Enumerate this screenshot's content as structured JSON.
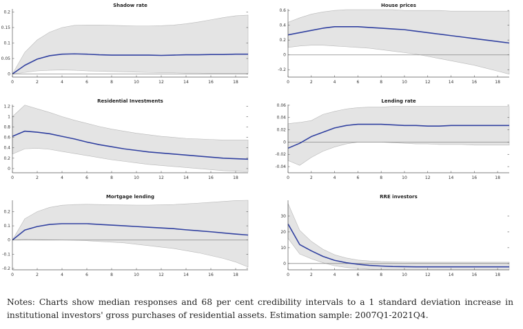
{
  "chart_data": [
    {
      "type": "line",
      "title": "Shadow rate",
      "x": [
        0,
        1,
        2,
        3,
        4,
        5,
        6,
        7,
        8,
        9,
        10,
        11,
        12,
        13,
        14,
        15,
        16,
        17,
        18,
        19
      ],
      "xticks": [
        0,
        2,
        4,
        6,
        8,
        10,
        12,
        14,
        16,
        18
      ],
      "xlim": [
        0,
        19
      ],
      "ylim": [
        -0.01,
        0.21
      ],
      "yticks": [
        0,
        0.05,
        0.1,
        0.15,
        0.2
      ],
      "ytick_labels": [
        "0",
        "0.05",
        "0.1",
        "0.15",
        "0.2"
      ],
      "zero_line": true,
      "series": [
        {
          "values": [
            0,
            0.028,
            0.048,
            0.059,
            0.064,
            0.065,
            0.064,
            0.062,
            0.061,
            0.061,
            0.061,
            0.061,
            0.06,
            0.061,
            0.062,
            0.062,
            0.063,
            0.063,
            0.064,
            0.064
          ]
        }
      ],
      "band": {
        "lower": [
          0,
          0.005,
          0.01,
          0.012,
          0.013,
          0.012,
          0.01,
          0.009,
          0.008,
          0.007,
          0.006,
          0.005,
          0.004,
          0.004,
          0.003,
          0.003,
          0.002,
          0.002,
          0.002,
          0.002
        ],
        "upper": [
          0,
          0.07,
          0.11,
          0.135,
          0.15,
          0.157,
          0.158,
          0.158,
          0.157,
          0.156,
          0.155,
          0.155,
          0.156,
          0.158,
          0.162,
          0.168,
          0.175,
          0.182,
          0.188,
          0.19
        ]
      }
    },
    {
      "type": "line",
      "title": "House prices",
      "x": [
        0,
        1,
        2,
        3,
        4,
        5,
        6,
        7,
        8,
        9,
        10,
        11,
        12,
        13,
        14,
        15,
        16,
        17,
        18,
        19
      ],
      "xticks": [
        0,
        2,
        4,
        6,
        8,
        10,
        12,
        14,
        16,
        18
      ],
      "xlim": [
        0,
        19
      ],
      "ylim": [
        -0.3,
        0.62
      ],
      "yticks": [
        -0.2,
        0,
        0.2,
        0.4,
        0.6
      ],
      "ytick_labels": [
        "-0.2",
        "0",
        "0.2",
        "0.4",
        "0.6"
      ],
      "zero_line": true,
      "series": [
        {
          "values": [
            0.27,
            0.3,
            0.33,
            0.36,
            0.38,
            0.38,
            0.38,
            0.37,
            0.36,
            0.35,
            0.34,
            0.32,
            0.3,
            0.28,
            0.26,
            0.24,
            0.22,
            0.2,
            0.18,
            0.16
          ]
        }
      ],
      "band": {
        "lower": [
          0.1,
          0.12,
          0.13,
          0.13,
          0.12,
          0.11,
          0.1,
          0.09,
          0.07,
          0.05,
          0.03,
          0.01,
          -0.02,
          -0.05,
          -0.08,
          -0.11,
          -0.14,
          -0.18,
          -0.22,
          -0.26
        ],
        "upper": [
          0.44,
          0.5,
          0.55,
          0.58,
          0.6,
          0.61,
          0.61,
          0.61,
          0.61,
          0.61,
          0.6,
          0.6,
          0.6,
          0.6,
          0.59,
          0.59,
          0.59,
          0.59,
          0.59,
          0.59
        ]
      }
    },
    {
      "type": "line",
      "title": "Residential Investments",
      "x": [
        0,
        1,
        2,
        3,
        4,
        5,
        6,
        7,
        8,
        9,
        10,
        11,
        12,
        13,
        14,
        15,
        16,
        17,
        18,
        19
      ],
      "xticks": [
        0,
        2,
        4,
        6,
        8,
        10,
        12,
        14,
        16,
        18
      ],
      "xlim": [
        0,
        19
      ],
      "ylim": [
        -0.08,
        1.23
      ],
      "yticks": [
        0,
        0.2,
        0.4,
        0.6,
        0.8,
        1,
        1.2
      ],
      "ytick_labels": [
        "0",
        "0.2",
        "0.4",
        "0.6",
        "0.8",
        "1",
        "1.2"
      ],
      "zero_line": false,
      "series": [
        {
          "values": [
            0.62,
            0.72,
            0.7,
            0.67,
            0.62,
            0.57,
            0.51,
            0.46,
            0.42,
            0.38,
            0.35,
            0.32,
            0.3,
            0.28,
            0.26,
            0.24,
            0.22,
            0.2,
            0.19,
            0.18
          ]
        }
      ],
      "band": {
        "lower": [
          0.28,
          0.38,
          0.39,
          0.37,
          0.33,
          0.29,
          0.25,
          0.21,
          0.17,
          0.14,
          0.11,
          0.08,
          0.06,
          0.04,
          0.02,
          0.0,
          -0.02,
          -0.04,
          -0.05,
          -0.06
        ],
        "upper": [
          1.0,
          1.22,
          1.15,
          1.08,
          1.0,
          0.93,
          0.87,
          0.81,
          0.76,
          0.72,
          0.68,
          0.65,
          0.62,
          0.6,
          0.58,
          0.57,
          0.56,
          0.55,
          0.55,
          0.55
        ]
      }
    },
    {
      "type": "line",
      "title": "Lending rate",
      "x": [
        0,
        1,
        2,
        3,
        4,
        5,
        6,
        7,
        8,
        9,
        10,
        11,
        12,
        13,
        14,
        15,
        16,
        17,
        18,
        19
      ],
      "xticks": [
        0,
        2,
        4,
        6,
        8,
        10,
        12,
        14,
        16,
        18
      ],
      "xlim": [
        0,
        19
      ],
      "ylim": [
        -0.05,
        0.061
      ],
      "yticks": [
        -0.04,
        -0.02,
        0,
        0.02,
        0.04,
        0.06
      ],
      "ytick_labels": [
        "-0.04",
        "-0.02",
        "0",
        "0.02",
        "0.04",
        "0.06"
      ],
      "zero_line": true,
      "series": [
        {
          "values": [
            -0.01,
            -0.002,
            0.009,
            0.016,
            0.023,
            0.027,
            0.029,
            0.029,
            0.029,
            0.028,
            0.027,
            0.027,
            0.026,
            0.026,
            0.027,
            0.027,
            0.027,
            0.027,
            0.027,
            0.027
          ]
        }
      ],
      "band": {
        "lower": [
          -0.03,
          -0.038,
          -0.025,
          -0.015,
          -0.008,
          -0.003,
          0.0,
          0.0,
          0.0,
          -0.001,
          -0.002,
          -0.003,
          -0.003,
          -0.004,
          -0.004,
          -0.004,
          -0.005,
          -0.005,
          -0.005,
          -0.005
        ],
        "upper": [
          0.03,
          0.032,
          0.035,
          0.045,
          0.05,
          0.054,
          0.056,
          0.057,
          0.057,
          0.058,
          0.058,
          0.058,
          0.058,
          0.058,
          0.058,
          0.058,
          0.058,
          0.058,
          0.058,
          0.058
        ]
      }
    },
    {
      "type": "line",
      "title": "Mortgage lending",
      "x": [
        0,
        1,
        2,
        3,
        4,
        5,
        6,
        7,
        8,
        9,
        10,
        11,
        12,
        13,
        14,
        15,
        16,
        17,
        18,
        19
      ],
      "xticks": [
        0,
        2,
        4,
        6,
        8,
        10,
        12,
        14,
        16,
        18
      ],
      "xlim": [
        0,
        19
      ],
      "ylim": [
        -0.21,
        0.28
      ],
      "yticks": [
        -0.2,
        -0.1,
        0,
        0.1,
        0.2
      ],
      "ytick_labels": [
        "-0.2",
        "-0.1",
        "0",
        "0.1",
        "0.2"
      ],
      "zero_line": true,
      "series": [
        {
          "values": [
            0,
            0.07,
            0.095,
            0.11,
            0.115,
            0.115,
            0.115,
            0.11,
            0.105,
            0.1,
            0.095,
            0.09,
            0.085,
            0.08,
            0.072,
            0.065,
            0.058,
            0.05,
            0.042,
            0.035
          ]
        }
      ],
      "band": {
        "lower": [
          0,
          0.005,
          0.003,
          0.002,
          0.0,
          -0.002,
          -0.005,
          -0.01,
          -0.015,
          -0.02,
          -0.03,
          -0.04,
          -0.05,
          -0.06,
          -0.075,
          -0.09,
          -0.11,
          -0.13,
          -0.155,
          -0.19
        ],
        "upper": [
          0,
          0.15,
          0.2,
          0.23,
          0.245,
          0.25,
          0.252,
          0.25,
          0.248,
          0.247,
          0.246,
          0.246,
          0.248,
          0.25,
          0.255,
          0.26,
          0.266,
          0.272,
          0.278,
          0.28
        ]
      }
    },
    {
      "type": "line",
      "title": "RRE investors",
      "x": [
        0,
        1,
        2,
        3,
        4,
        5,
        6,
        7,
        8,
        9,
        10,
        11,
        12,
        13,
        14,
        15,
        16,
        17,
        18,
        19
      ],
      "xticks": [
        0,
        2,
        4,
        6,
        8,
        10,
        12,
        14,
        16,
        18
      ],
      "xlim": [
        0,
        19
      ],
      "ylim": [
        -4,
        40
      ],
      "yticks": [
        0,
        10,
        20,
        30
      ],
      "ytick_labels": [
        "0",
        "10",
        "20",
        "30"
      ],
      "zero_line": true,
      "series": [
        {
          "values": [
            25,
            12,
            8,
            4.5,
            2,
            0.5,
            -0.5,
            -1.2,
            -1.6,
            -1.9,
            -2.0,
            -2.1,
            -2.1,
            -2.1,
            -2.1,
            -2.1,
            -2.1,
            -2.1,
            -2.1,
            -2.1
          ]
        }
      ],
      "band": {
        "lower": [
          16,
          6,
          3,
          0.5,
          -1.5,
          -2.5,
          -3.2,
          -3.6,
          -3.8,
          -3.9,
          -4.0,
          -4.0,
          -4.0,
          -4.0,
          -4.0,
          -4.0,
          -4.0,
          -4.0,
          -4.0,
          -4.0
        ],
        "upper": [
          38,
          21,
          14,
          9,
          5.5,
          3.5,
          2.2,
          1.6,
          1.2,
          1.0,
          0.9,
          0.8,
          0.8,
          0.8,
          0.8,
          0.8,
          0.8,
          0.8,
          0.8,
          0.8
        ]
      }
    }
  ],
  "colors": {
    "line": "#3040a0",
    "band": "#e4e4e4",
    "band_edge": "#b8b8b8",
    "zero_line": "#888888",
    "axis": "#555555"
  },
  "notes": "Notes: Charts show median responses and 68 per cent credibility intervals to a 1 standard deviation increase in institutional investors' gross purchases of residential assets. Estimation sample: 2007Q1-2021Q4."
}
